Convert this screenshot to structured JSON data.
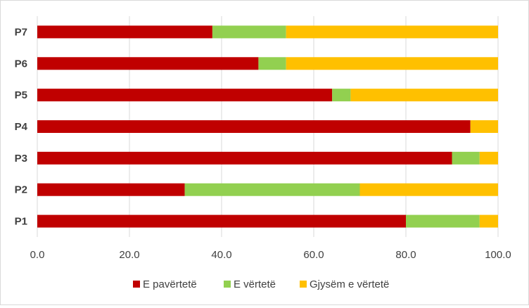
{
  "chart_data": {
    "type": "bar",
    "orientation": "horizontal",
    "stacked": true,
    "categories": [
      "P1",
      "P2",
      "P3",
      "P4",
      "P5",
      "P6",
      "P7"
    ],
    "series": [
      {
        "name": "E pavërtetë",
        "color": "#C00000",
        "values": [
          80,
          32,
          90,
          94,
          64,
          48,
          38
        ]
      },
      {
        "name": "E vërtetë",
        "color": "#92D050",
        "values": [
          16,
          38,
          6,
          0,
          4,
          6,
          16
        ]
      },
      {
        "name": "Gjysëm e vërtetë",
        "color": "#FFC000",
        "values": [
          4,
          30,
          4,
          6,
          32,
          46,
          46
        ]
      }
    ],
    "xlim": [
      0,
      100
    ],
    "xticks": [
      "0.0",
      "20.0",
      "40.0",
      "60.0",
      "80.0",
      "100.0"
    ],
    "grid": "vertical-major",
    "legend": "bottom"
  }
}
